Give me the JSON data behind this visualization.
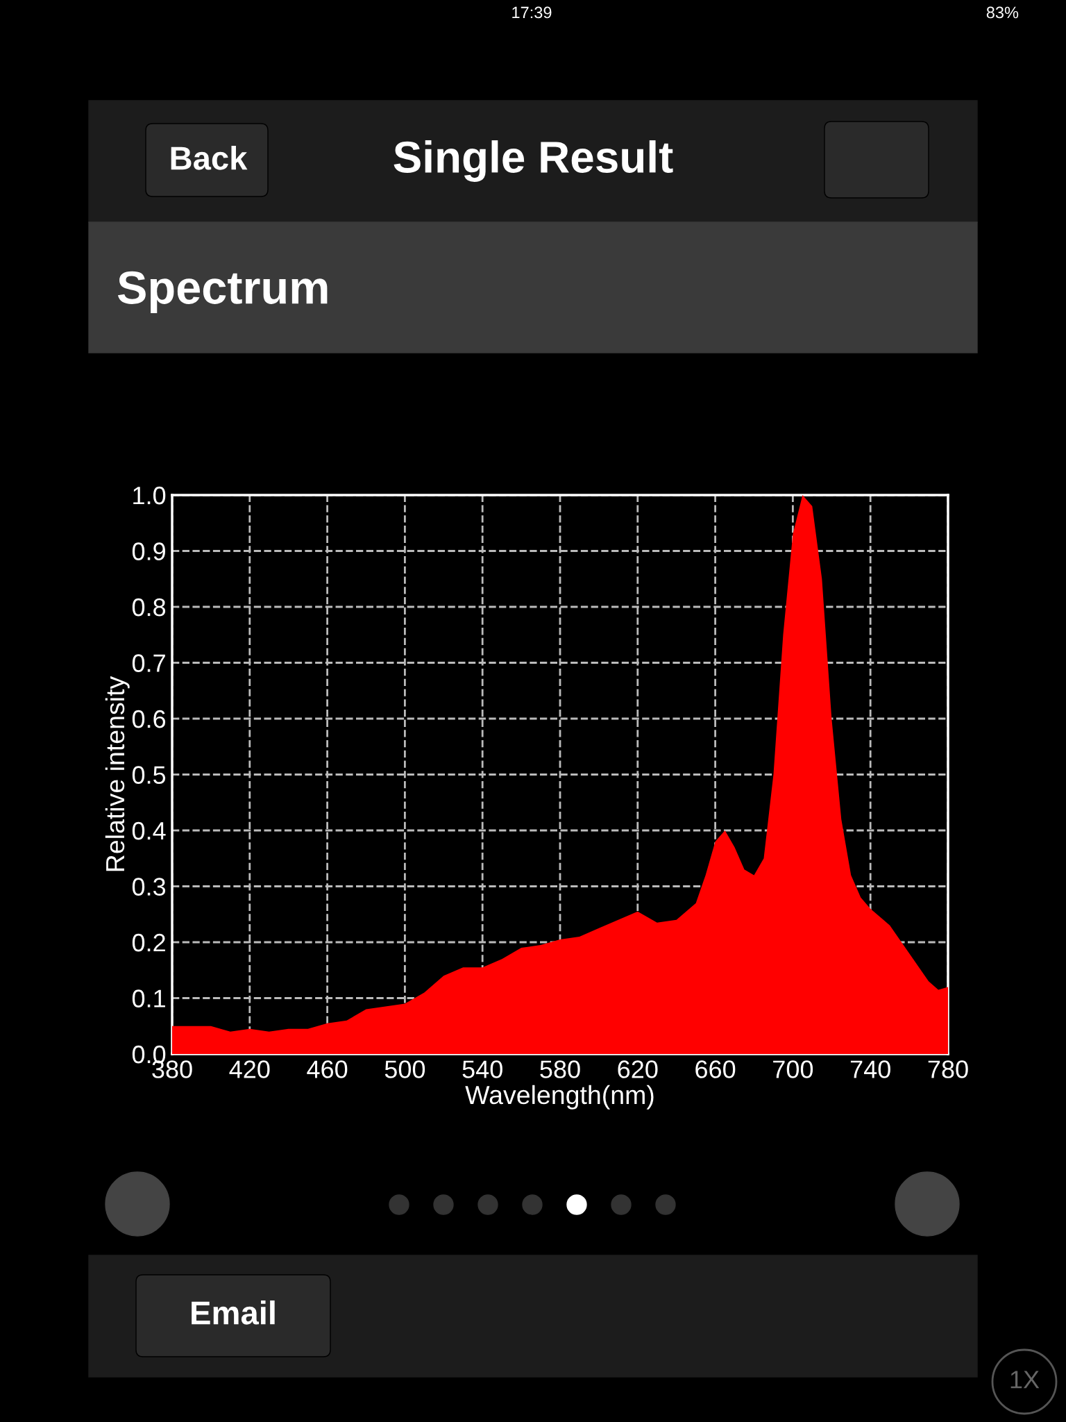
{
  "chart_data": {
    "type": "area",
    "title": "Single Result",
    "subtitle": "Spectrum",
    "xlabel": "Wavelength(nm)",
    "ylabel": "Relative intensity",
    "annotations": [
      "17:39",
      "83%",
      "Back",
      "Email",
      "1X"
    ],
    "x": [
      380,
      390,
      400,
      410,
      420,
      430,
      440,
      450,
      460,
      470,
      480,
      490,
      500,
      510,
      520,
      530,
      540,
      550,
      560,
      570,
      580,
      590,
      600,
      610,
      620,
      630,
      640,
      650,
      655,
      660,
      665,
      670,
      675,
      680,
      685,
      690,
      695,
      700,
      705,
      710,
      715,
      720,
      725,
      730,
      735,
      740,
      750,
      760,
      770,
      775,
      780
    ],
    "series": [
      {
        "color": "#ff0000",
        "values": [
          0.05,
          0.05,
          0.05,
          0.04,
          0.045,
          0.04,
          0.045,
          0.045,
          0.055,
          0.06,
          0.08,
          0.085,
          0.09,
          0.11,
          0.14,
          0.155,
          0.155,
          0.17,
          0.19,
          0.195,
          0.205,
          0.21,
          0.225,
          0.24,
          0.255,
          0.235,
          0.24,
          0.27,
          0.32,
          0.38,
          0.4,
          0.37,
          0.33,
          0.32,
          0.35,
          0.5,
          0.75,
          0.93,
          1.0,
          0.98,
          0.85,
          0.6,
          0.42,
          0.32,
          0.28,
          0.26,
          0.23,
          0.18,
          0.13,
          0.115,
          0.12
        ]
      }
    ],
    "xlim": [
      380,
      780
    ],
    "xticks": [
      380,
      420,
      460,
      500,
      540,
      580,
      620,
      660,
      700,
      740,
      780
    ],
    "ylim": [
      0,
      1
    ],
    "yticks": [
      {
        "value": 0,
        "label": "0.0"
      },
      {
        "value": 0.1,
        "label": "0.1"
      },
      {
        "value": 0.2,
        "label": "0.2"
      },
      {
        "value": 0.3,
        "label": "0.3"
      },
      {
        "value": 0.4,
        "label": "0.4"
      },
      {
        "value": 0.5,
        "label": "0.5"
      },
      {
        "value": 0.6,
        "label": "0.6"
      },
      {
        "value": 0.7,
        "label": "0.7"
      },
      {
        "value": 0.8,
        "label": "0.8"
      },
      {
        "value": 0.9,
        "label": "0.9"
      },
      {
        "value": 1,
        "label": "1.0"
      }
    ],
    "grid": true,
    "line_style": "dashed"
  }
}
